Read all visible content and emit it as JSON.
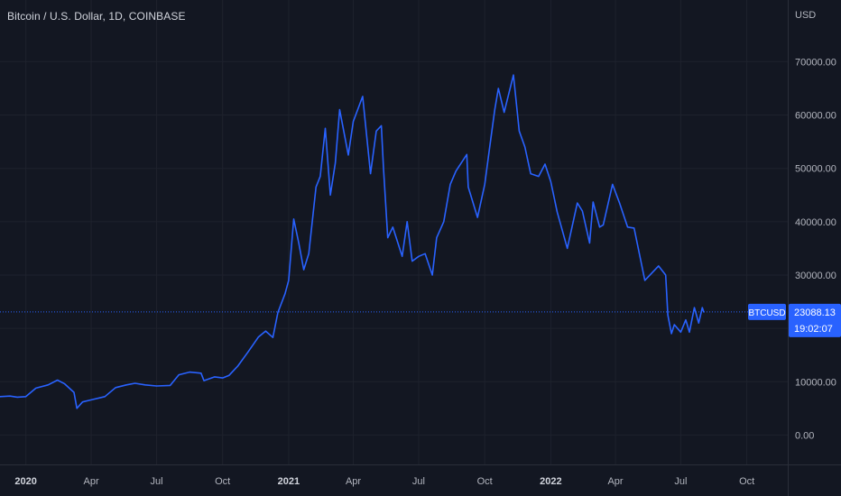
{
  "header": {
    "title": "Bitcoin / U.S. Dollar, 1D, COINBASE"
  },
  "y_axis": {
    "currency": "USD",
    "ticks": [
      "70000.00",
      "60000.00",
      "50000.00",
      "40000.00",
      "30000.00",
      "10000.00",
      "0.00"
    ]
  },
  "price_badge": {
    "symbol": "BTCUSD",
    "price": "23088.13",
    "countdown": "19:02:07"
  },
  "colors": {
    "background": "#131722",
    "grid": "#1e222d",
    "line": "#2962ff",
    "badge": "#2962ff",
    "text": "#b2b5be"
  },
  "chart_data": {
    "type": "line",
    "title": "Bitcoin / U.S. Dollar, 1D, COINBASE",
    "ylabel": "USD",
    "ylim": [
      -5000,
      77000
    ],
    "xlim": [
      "2019-11-26",
      "2022-11-27"
    ],
    "x_ticks": [
      {
        "label": "2020",
        "date": "2020-01-01",
        "bold": true
      },
      {
        "label": "Apr",
        "date": "2020-04-01",
        "bold": false
      },
      {
        "label": "Jul",
        "date": "2020-07-01",
        "bold": false
      },
      {
        "label": "Oct",
        "date": "2020-10-01",
        "bold": false
      },
      {
        "label": "2021",
        "date": "2021-01-01",
        "bold": true
      },
      {
        "label": "Apr",
        "date": "2021-04-01",
        "bold": false
      },
      {
        "label": "Jul",
        "date": "2021-07-01",
        "bold": false
      },
      {
        "label": "Oct",
        "date": "2021-10-01",
        "bold": false
      },
      {
        "label": "2022",
        "date": "2022-01-01",
        "bold": true
      },
      {
        "label": "Apr",
        "date": "2022-04-01",
        "bold": false
      },
      {
        "label": "Jul",
        "date": "2022-07-01",
        "bold": false
      },
      {
        "label": "Oct",
        "date": "2022-10-01",
        "bold": false
      }
    ],
    "y_ticks": [
      70000,
      60000,
      50000,
      40000,
      30000,
      10000,
      0
    ],
    "grid": true,
    "current_price": 23088.13,
    "series": [
      {
        "name": "BTCUSD",
        "points": [
          [
            "2019-11-26",
            7200
          ],
          [
            "2019-12-10",
            7300
          ],
          [
            "2019-12-20",
            7100
          ],
          [
            "2020-01-01",
            7200
          ],
          [
            "2020-01-15",
            8800
          ],
          [
            "2020-02-01",
            9400
          ],
          [
            "2020-02-14",
            10300
          ],
          [
            "2020-02-24",
            9600
          ],
          [
            "2020-03-08",
            8000
          ],
          [
            "2020-03-12",
            5000
          ],
          [
            "2020-03-20",
            6200
          ],
          [
            "2020-04-01",
            6600
          ],
          [
            "2020-04-20",
            7200
          ],
          [
            "2020-05-05",
            8900
          ],
          [
            "2020-05-20",
            9400
          ],
          [
            "2020-06-01",
            9700
          ],
          [
            "2020-06-15",
            9400
          ],
          [
            "2020-07-01",
            9200
          ],
          [
            "2020-07-20",
            9300
          ],
          [
            "2020-08-01",
            11300
          ],
          [
            "2020-08-16",
            11800
          ],
          [
            "2020-09-01",
            11600
          ],
          [
            "2020-09-05",
            10200
          ],
          [
            "2020-09-20",
            10900
          ],
          [
            "2020-10-01",
            10700
          ],
          [
            "2020-10-10",
            11200
          ],
          [
            "2020-10-22",
            12900
          ],
          [
            "2020-11-05",
            15500
          ],
          [
            "2020-11-20",
            18400
          ],
          [
            "2020-11-30",
            19500
          ],
          [
            "2020-12-10",
            18300
          ],
          [
            "2020-12-17",
            23000
          ],
          [
            "2020-12-27",
            26500
          ],
          [
            "2021-01-01",
            29000
          ],
          [
            "2021-01-08",
            40500
          ],
          [
            "2021-01-15",
            36000
          ],
          [
            "2021-01-22",
            31000
          ],
          [
            "2021-01-29",
            34000
          ],
          [
            "2021-02-08",
            46500
          ],
          [
            "2021-02-14",
            48500
          ],
          [
            "2021-02-21",
            57500
          ],
          [
            "2021-02-28",
            45000
          ],
          [
            "2021-03-07",
            51000
          ],
          [
            "2021-03-13",
            61000
          ],
          [
            "2021-03-25",
            52500
          ],
          [
            "2021-04-01",
            58800
          ],
          [
            "2021-04-14",
            63500
          ],
          [
            "2021-04-25",
            49000
          ],
          [
            "2021-05-03",
            57000
          ],
          [
            "2021-05-10",
            58000
          ],
          [
            "2021-05-13",
            50000
          ],
          [
            "2021-05-19",
            37000
          ],
          [
            "2021-05-26",
            39000
          ],
          [
            "2021-06-08",
            33500
          ],
          [
            "2021-06-15",
            40000
          ],
          [
            "2021-06-22",
            32600
          ],
          [
            "2021-07-01",
            33500
          ],
          [
            "2021-07-10",
            34000
          ],
          [
            "2021-07-20",
            30000
          ],
          [
            "2021-07-26",
            37000
          ],
          [
            "2021-08-05",
            40000
          ],
          [
            "2021-08-14",
            47000
          ],
          [
            "2021-08-22",
            49500
          ],
          [
            "2021-09-06",
            52600
          ],
          [
            "2021-09-08",
            46500
          ],
          [
            "2021-09-21",
            40800
          ],
          [
            "2021-10-01",
            47000
          ],
          [
            "2021-10-08",
            54000
          ],
          [
            "2021-10-15",
            61000
          ],
          [
            "2021-10-20",
            65000
          ],
          [
            "2021-10-28",
            60500
          ],
          [
            "2021-11-10",
            67500
          ],
          [
            "2021-11-18",
            57000
          ],
          [
            "2021-11-26",
            54000
          ],
          [
            "2021-12-04",
            49000
          ],
          [
            "2021-12-15",
            48500
          ],
          [
            "2021-12-24",
            50800
          ],
          [
            "2022-01-01",
            47500
          ],
          [
            "2022-01-10",
            41800
          ],
          [
            "2022-01-24",
            35000
          ],
          [
            "2022-02-07",
            43500
          ],
          [
            "2022-02-14",
            42000
          ],
          [
            "2022-02-24",
            36000
          ],
          [
            "2022-03-01",
            43700
          ],
          [
            "2022-03-10",
            39000
          ],
          [
            "2022-03-15",
            39400
          ],
          [
            "2022-03-28",
            47000
          ],
          [
            "2022-04-07",
            43400
          ],
          [
            "2022-04-18",
            39000
          ],
          [
            "2022-04-27",
            38800
          ],
          [
            "2022-05-09",
            31000
          ],
          [
            "2022-05-12",
            29000
          ],
          [
            "2022-05-31",
            31700
          ],
          [
            "2022-06-10",
            30000
          ],
          [
            "2022-06-13",
            22500
          ],
          [
            "2022-06-18",
            19000
          ],
          [
            "2022-06-22",
            20700
          ],
          [
            "2022-07-01",
            19300
          ],
          [
            "2022-07-08",
            21600
          ],
          [
            "2022-07-13",
            19300
          ],
          [
            "2022-07-20",
            23900
          ],
          [
            "2022-07-26",
            21000
          ],
          [
            "2022-07-31",
            23900
          ],
          [
            "2022-08-02",
            23088.13
          ]
        ]
      }
    ]
  }
}
